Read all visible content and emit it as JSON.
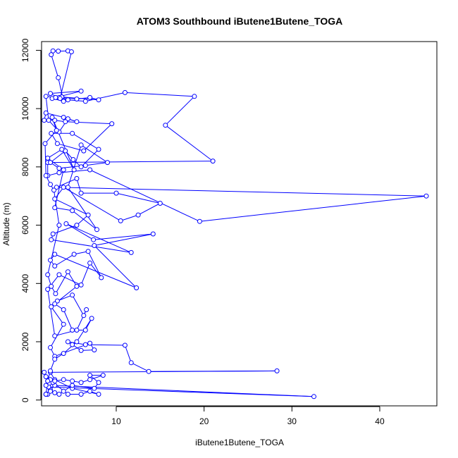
{
  "chart_data": {
    "type": "line",
    "title": "ATOM3 Southbound iButene1Butene_TOGA",
    "xlabel": "iButene1Butene_TOGA",
    "ylabel": "Altitude (m)",
    "xlim": [
      1.5,
      46.5
    ],
    "ylim": [
      -200,
      12300
    ],
    "xticks": [
      10,
      20,
      30,
      40
    ],
    "yticks": [
      0,
      2000,
      4000,
      6000,
      8000,
      10000,
      12000
    ],
    "xtick_labels": [
      "10",
      "20",
      "30",
      "40"
    ],
    "ytick_labels": [
      "0",
      "2000",
      "4000",
      "6000",
      "8000",
      "10000",
      "12000"
    ],
    "grid": false,
    "legend": "none",
    "colors": {
      "series": "#0000ff",
      "axis": "#000000"
    },
    "series": [
      {
        "points": [
          [
            2.0,
            200
          ],
          [
            2.2,
            200
          ],
          [
            2.5,
            350
          ],
          [
            3.0,
            500
          ],
          [
            32.5,
            120
          ],
          [
            2.3,
            450
          ],
          [
            2.8,
            600
          ],
          [
            4.5,
            200
          ],
          [
            6.0,
            200
          ],
          [
            7.0,
            300
          ],
          [
            8.0,
            200
          ],
          [
            5.0,
            400
          ],
          [
            3.0,
            700
          ],
          [
            2.5,
            950
          ],
          [
            28.3,
            1000
          ],
          [
            13.7,
            980
          ],
          [
            11.7,
            1280
          ],
          [
            11.0,
            1880
          ],
          [
            6.5,
            1900
          ],
          [
            4.5,
            2000
          ],
          [
            5.0,
            1900
          ],
          [
            6.0,
            1700
          ],
          [
            7.5,
            1720
          ],
          [
            7.0,
            1950
          ],
          [
            3.0,
            1500
          ],
          [
            2.5,
            1800
          ],
          [
            4.0,
            2600
          ],
          [
            2.6,
            3200
          ],
          [
            3.3,
            3400
          ],
          [
            5.0,
            3600
          ],
          [
            6.3,
            2900
          ],
          [
            6.6,
            3100
          ],
          [
            5.5,
            2400
          ],
          [
            3.0,
            2200
          ],
          [
            2.2,
            3800
          ],
          [
            3.5,
            4300
          ],
          [
            6.0,
            3950
          ],
          [
            7.0,
            4700
          ],
          [
            8.3,
            4200
          ],
          [
            6.8,
            5100
          ],
          [
            5.2,
            5000
          ],
          [
            3.0,
            4600
          ],
          [
            2.5,
            4800
          ],
          [
            3.0,
            5000
          ],
          [
            12.3,
            3850
          ],
          [
            7.5,
            5300
          ],
          [
            14.2,
            5700
          ],
          [
            7.4,
            5500
          ],
          [
            4.3,
            6050
          ],
          [
            11.7,
            5060
          ],
          [
            2.6,
            5500
          ],
          [
            2.8,
            5700
          ],
          [
            5.5,
            6000
          ],
          [
            6.8,
            6350
          ],
          [
            3.0,
            6900
          ],
          [
            4.0,
            7300
          ],
          [
            10.5,
            6150
          ],
          [
            12.5,
            6350
          ],
          [
            15.0,
            6750
          ],
          [
            10.0,
            7100
          ],
          [
            6.0,
            7100
          ],
          [
            5.5,
            7600
          ],
          [
            3.2,
            7300
          ],
          [
            45.3,
            7000
          ],
          [
            19.5,
            6130
          ],
          [
            7.0,
            7900
          ],
          [
            3.5,
            7800
          ],
          [
            2.2,
            7700
          ],
          [
            2.2,
            8150
          ],
          [
            21.0,
            8200
          ],
          [
            15.6,
            9430
          ],
          [
            18.9,
            10420
          ],
          [
            11.0,
            10550
          ],
          [
            6.5,
            10250
          ],
          [
            4.5,
            10300
          ],
          [
            3.5,
            10380
          ],
          [
            5.5,
            10330
          ],
          [
            7.0,
            10380
          ],
          [
            8.0,
            10300
          ],
          [
            3.8,
            10400
          ],
          [
            2.7,
            10350
          ],
          [
            4.0,
            10250
          ],
          [
            3.4,
            11060
          ],
          [
            2.6,
            11850
          ],
          [
            2.8,
            11980
          ],
          [
            3.4,
            11970
          ],
          [
            4.5,
            11980
          ],
          [
            4.9,
            11950
          ],
          [
            3.6,
            10350
          ],
          [
            2.5,
            10520
          ],
          [
            6.0,
            10600
          ],
          [
            3.1,
            10380
          ],
          [
            2.0,
            10420
          ],
          [
            2.3,
            9600
          ],
          [
            3.5,
            9200
          ],
          [
            4.5,
            9650
          ],
          [
            5.5,
            9550
          ],
          [
            4.0,
            9700
          ],
          [
            2.0,
            9850
          ],
          [
            1.8,
            9600
          ],
          [
            3.0,
            9600
          ],
          [
            4.2,
            9550
          ],
          [
            9.5,
            9480
          ],
          [
            6.3,
            8550
          ],
          [
            3.3,
            8800
          ],
          [
            2.6,
            9150
          ],
          [
            5.0,
            9150
          ],
          [
            8.0,
            8600
          ],
          [
            6.0,
            8000
          ],
          [
            5.1,
            8250
          ],
          [
            4.2,
            8550
          ],
          [
            2.5,
            8150
          ],
          [
            3.5,
            7950
          ],
          [
            6.5,
            8050
          ],
          [
            9.0,
            8150
          ],
          [
            6.0,
            8750
          ],
          [
            4.5,
            7300
          ],
          [
            7.8,
            5850
          ],
          [
            5.0,
            6500
          ],
          [
            3.0,
            6600
          ],
          [
            4.0,
            7900
          ],
          [
            2.2,
            8300
          ],
          [
            3.8,
            8600
          ],
          [
            5.2,
            7900
          ],
          [
            2.7,
            9700
          ],
          [
            3.2,
            9250
          ],
          [
            1.9,
            8800
          ],
          [
            2.0,
            7700
          ],
          [
            2.5,
            7400
          ],
          [
            2.9,
            7200
          ],
          [
            3.5,
            6000
          ],
          [
            2.2,
            4300
          ],
          [
            2.6,
            3900
          ],
          [
            3.1,
            3650
          ],
          [
            4.5,
            4400
          ],
          [
            5.5,
            3900
          ],
          [
            3.0,
            3300
          ],
          [
            4.0,
            3100
          ],
          [
            5.0,
            2400
          ],
          [
            6.5,
            2400
          ],
          [
            7.2,
            2800
          ],
          [
            5.5,
            2000
          ],
          [
            4.0,
            1600
          ],
          [
            3.0,
            1400
          ],
          [
            2.5,
            1000
          ],
          [
            2.2,
            650
          ],
          [
            2.0,
            500
          ],
          [
            2.5,
            300
          ],
          [
            3.0,
            250
          ],
          [
            3.5,
            200
          ],
          [
            4.0,
            300
          ],
          [
            5.0,
            500
          ],
          [
            7.5,
            400
          ],
          [
            8.0,
            600
          ],
          [
            7.0,
            850
          ],
          [
            8.5,
            850
          ],
          [
            7.0,
            700
          ],
          [
            6.0,
            600
          ],
          [
            5.0,
            650
          ],
          [
            4.0,
            700
          ],
          [
            3.0,
            650
          ],
          [
            2.5,
            700
          ],
          [
            2.0,
            800
          ],
          [
            1.8,
            950
          ],
          [
            2.2,
            650
          ],
          [
            2.0,
            200
          ]
        ]
      }
    ]
  }
}
